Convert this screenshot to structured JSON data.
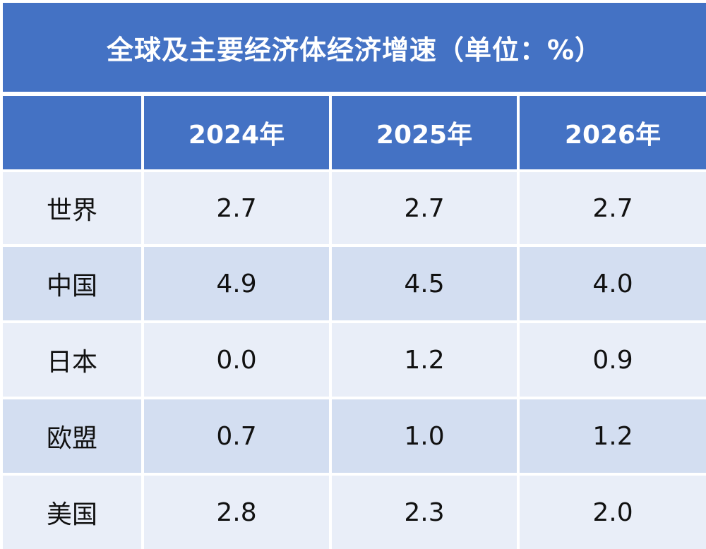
{
  "chart_data": {
    "type": "table",
    "title": "全球及主要经济体经济增速（单位：%）",
    "header": [
      "",
      "2024年",
      "2025年",
      "2026年"
    ],
    "rows": [
      {
        "label": "世界",
        "values": [
          "2.7",
          "2.7",
          "2.7"
        ]
      },
      {
        "label": "中国",
        "values": [
          "4.9",
          "4.5",
          "4.0"
        ]
      },
      {
        "label": "日本",
        "values": [
          "0.0",
          "1.2",
          "0.9"
        ]
      },
      {
        "label": "欧盟",
        "values": [
          "0.7",
          "1.0",
          "1.2"
        ]
      },
      {
        "label": "美国",
        "values": [
          "2.8",
          "2.3",
          "2.0"
        ]
      }
    ]
  },
  "colors": {
    "header_bg": "#4472c4",
    "row_light": "#e9eef8",
    "row_dark": "#d3def1"
  }
}
